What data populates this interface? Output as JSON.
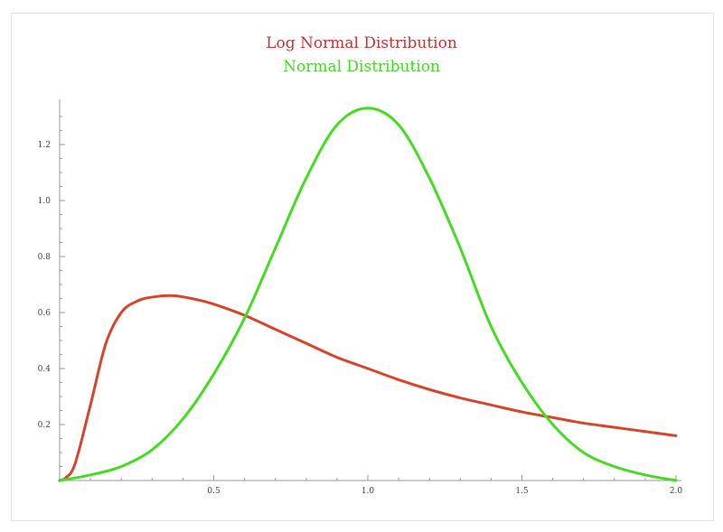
{
  "chart_data": {
    "type": "line",
    "legend": [
      "Log Normal Distribution",
      "Normal Distribution"
    ],
    "xlim": [
      0,
      2
    ],
    "ylim": [
      0,
      1.35
    ],
    "xticks": [
      0.5,
      1.0,
      1.5,
      2.0
    ],
    "xtick_labels": [
      "0.5",
      "1.0",
      "1.5",
      "2.0"
    ],
    "yticks": [
      0.2,
      0.4,
      0.6,
      0.8,
      1.0,
      1.2
    ],
    "ytick_labels": [
      "0.2",
      "0.4",
      "0.6",
      "0.8",
      "1.0",
      "1.2"
    ],
    "series": [
      {
        "name": "Log Normal Distribution",
        "color": "#d9442b",
        "x": [
          0.0,
          0.02,
          0.05,
          0.1,
          0.15,
          0.2,
          0.25,
          0.3,
          0.37,
          0.45,
          0.5,
          0.6,
          0.7,
          0.8,
          0.9,
          1.0,
          1.1,
          1.2,
          1.3,
          1.4,
          1.5,
          1.6,
          1.7,
          1.8,
          1.9,
          2.0
        ],
        "y": [
          0.0,
          0.01,
          0.06,
          0.27,
          0.49,
          0.6,
          0.64,
          0.655,
          0.66,
          0.645,
          0.63,
          0.59,
          0.54,
          0.49,
          0.44,
          0.4,
          0.36,
          0.325,
          0.295,
          0.27,
          0.245,
          0.225,
          0.205,
          0.19,
          0.175,
          0.16
        ]
      },
      {
        "name": "Normal Distribution",
        "color": "#44dd22",
        "x": [
          0.0,
          0.1,
          0.2,
          0.3,
          0.4,
          0.5,
          0.6,
          0.7,
          0.8,
          0.9,
          1.0,
          1.1,
          1.2,
          1.3,
          1.4,
          1.5,
          1.6,
          1.7,
          1.8,
          1.9,
          2.0
        ],
        "y": [
          0.0,
          0.02,
          0.05,
          0.11,
          0.22,
          0.38,
          0.58,
          0.83,
          1.08,
          1.27,
          1.33,
          1.27,
          1.08,
          0.83,
          0.55,
          0.35,
          0.2,
          0.1,
          0.05,
          0.02,
          0.0
        ]
      }
    ]
  }
}
